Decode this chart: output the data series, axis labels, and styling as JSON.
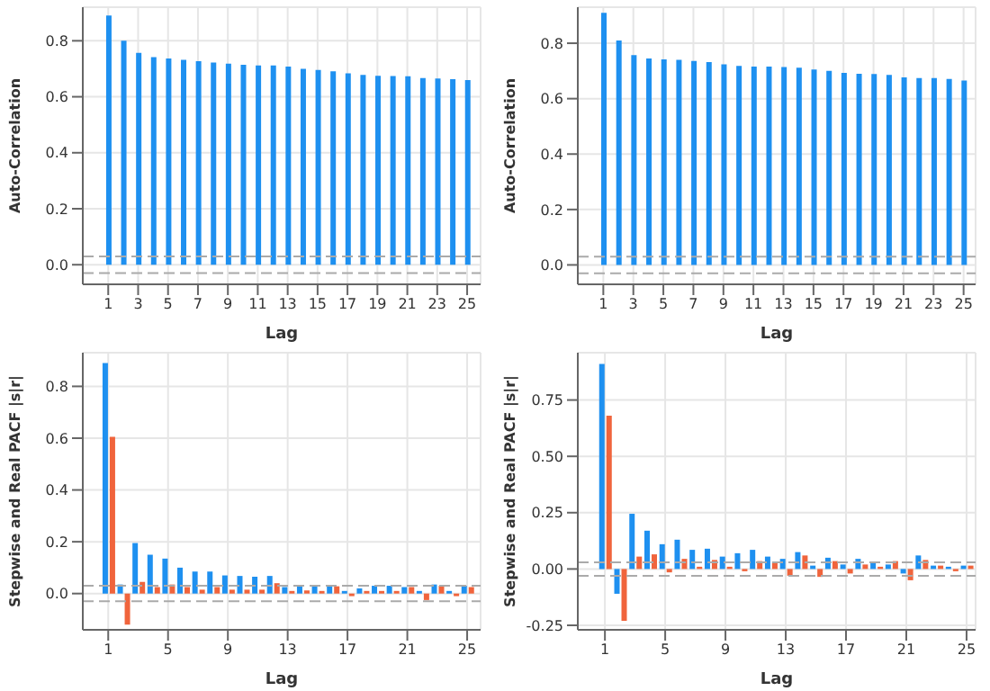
{
  "chart_data": [
    {
      "type": "bar",
      "xlabel": "Lag",
      "ylabel": "Auto-Correlation",
      "x": [
        1,
        2,
        3,
        4,
        5,
        6,
        7,
        8,
        9,
        10,
        11,
        12,
        13,
        14,
        15,
        16,
        17,
        18,
        19,
        20,
        21,
        22,
        23,
        24,
        25
      ],
      "series": [
        {
          "color": "#1e90f0",
          "values": [
            0.89,
            0.8,
            0.757,
            0.742,
            0.737,
            0.732,
            0.727,
            0.722,
            0.718,
            0.714,
            0.712,
            0.712,
            0.708,
            0.7,
            0.696,
            0.691,
            0.684,
            0.678,
            0.675,
            0.674,
            0.673,
            0.667,
            0.665,
            0.663,
            0.66
          ]
        }
      ],
      "xlim": [
        -0.7,
        25.9
      ],
      "xticks": [
        1,
        3,
        5,
        7,
        9,
        11,
        13,
        15,
        17,
        19,
        21,
        23,
        25
      ],
      "ylim": [
        -0.07,
        0.92
      ],
      "yticks": [
        {
          "value": 0,
          "label": "0.0"
        },
        {
          "value": 0.2,
          "label": "0.2"
        },
        {
          "value": 0.4,
          "label": "0.4"
        },
        {
          "value": 0.6,
          "label": "0.6"
        },
        {
          "value": 0.8,
          "label": "0.8"
        }
      ],
      "grid": true,
      "ref_lines": [
        {
          "axis": "y",
          "value": 0.03,
          "color": "#aaaaaa",
          "line_style": "dashed"
        },
        {
          "axis": "y",
          "value": -0.03,
          "color": "#aaaaaa",
          "line_style": "dashed"
        }
      ]
    },
    {
      "type": "bar",
      "xlabel": "Lag",
      "ylabel": "Auto-Correlation",
      "x": [
        1,
        2,
        3,
        4,
        5,
        6,
        7,
        8,
        9,
        10,
        11,
        12,
        13,
        14,
        15,
        16,
        17,
        18,
        19,
        20,
        21,
        22,
        23,
        24,
        25
      ],
      "series": [
        {
          "color": "#1e90f0",
          "values": [
            0.91,
            0.81,
            0.757,
            0.745,
            0.742,
            0.74,
            0.736,
            0.732,
            0.724,
            0.718,
            0.716,
            0.716,
            0.714,
            0.712,
            0.705,
            0.7,
            0.693,
            0.69,
            0.689,
            0.686,
            0.677,
            0.674,
            0.674,
            0.671,
            0.665
          ]
        }
      ],
      "xlim": [
        -0.7,
        25.8
      ],
      "xticks": [
        1,
        3,
        5,
        7,
        9,
        11,
        13,
        15,
        17,
        19,
        21,
        23,
        25
      ],
      "ylim": [
        -0.07,
        0.93
      ],
      "yticks": [
        {
          "value": 0,
          "label": "0.0"
        },
        {
          "value": 0.2,
          "label": "0.2"
        },
        {
          "value": 0.4,
          "label": "0.4"
        },
        {
          "value": 0.6,
          "label": "0.6"
        },
        {
          "value": 0.8,
          "label": "0.8"
        }
      ],
      "grid": true,
      "ref_lines": [
        {
          "axis": "y",
          "value": 0.03,
          "color": "#aaaaaa",
          "line_style": "dashed"
        },
        {
          "axis": "y",
          "value": -0.03,
          "color": "#aaaaaa",
          "line_style": "dashed"
        }
      ]
    },
    {
      "type": "bar",
      "xlabel": "Lag",
      "ylabel": "Stepwise and Real PACF  |s|r|",
      "x": [
        1,
        2,
        3,
        4,
        5,
        6,
        7,
        8,
        9,
        10,
        11,
        12,
        13,
        14,
        15,
        16,
        17,
        18,
        19,
        20,
        21,
        22,
        23,
        24,
        25
      ],
      "series": [
        {
          "color": "#1e90f0",
          "values": [
            0.89,
            0.035,
            0.195,
            0.15,
            0.135,
            0.1,
            0.085,
            0.085,
            0.07,
            0.068,
            0.065,
            0.068,
            0.025,
            0.032,
            0.032,
            0.033,
            0.01,
            0.02,
            0.03,
            0.03,
            0.025,
            0.01,
            0.035,
            0.01,
            0.03
          ]
        },
        {
          "color": "#f0643c",
          "values": [
            0.605,
            -0.12,
            0.045,
            0.025,
            0.035,
            0.025,
            0.015,
            0.025,
            0.015,
            0.015,
            0.015,
            0.04,
            0.01,
            0.012,
            0.01,
            0.028,
            -0.01,
            0.01,
            0.01,
            0.01,
            0.025,
            -0.025,
            0.03,
            -0.01,
            0.025
          ]
        }
      ],
      "xlim": [
        -0.7,
        25.9
      ],
      "xticks": [
        1,
        5,
        9,
        13,
        17,
        21,
        25
      ],
      "ylim": [
        -0.14,
        0.93
      ],
      "yticks": [
        {
          "value": 0,
          "label": "0.0"
        },
        {
          "value": 0.2,
          "label": "0.2"
        },
        {
          "value": 0.4,
          "label": "0.4"
        },
        {
          "value": 0.6,
          "label": "0.6"
        },
        {
          "value": 0.8,
          "label": "0.8"
        }
      ],
      "grid": true,
      "ref_lines": [
        {
          "axis": "y",
          "value": 0.03,
          "color": "#aaaaaa",
          "line_style": "dashed"
        },
        {
          "axis": "y",
          "value": -0.03,
          "color": "#aaaaaa",
          "line_style": "dashed"
        }
      ]
    },
    {
      "type": "bar",
      "xlabel": "Lag",
      "ylabel": "Stepwise and Real PACF  |s|r|",
      "x": [
        1,
        2,
        3,
        4,
        5,
        6,
        7,
        8,
        9,
        10,
        11,
        12,
        13,
        14,
        15,
        16,
        17,
        18,
        19,
        20,
        21,
        22,
        23,
        24,
        25
      ],
      "series": [
        {
          "color": "#1e90f0",
          "values": [
            0.91,
            -0.11,
            0.245,
            0.17,
            0.11,
            0.13,
            0.085,
            0.09,
            0.055,
            0.07,
            0.085,
            0.055,
            0.045,
            0.075,
            0.015,
            0.05,
            0.02,
            0.045,
            0.03,
            0.02,
            -0.02,
            0.06,
            0.015,
            0.01,
            0.015
          ]
        },
        {
          "color": "#f0643c",
          "values": [
            0.68,
            -0.23,
            0.055,
            0.065,
            -0.015,
            0.045,
            0.01,
            0.04,
            0.01,
            -0.01,
            0.035,
            0.03,
            -0.03,
            0.06,
            -0.035,
            0.035,
            -0.02,
            0.02,
            0.01,
            0.035,
            -0.05,
            0.04,
            0.015,
            -0.01,
            0.015
          ]
        }
      ],
      "xlim": [
        -0.8,
        25.6
      ],
      "xticks": [
        1,
        5,
        9,
        13,
        17,
        21,
        25
      ],
      "ylim": [
        -0.27,
        0.96
      ],
      "yticks": [
        {
          "value": -0.25,
          "label": "-0.25"
        },
        {
          "value": 0,
          "label": "0.00"
        },
        {
          "value": 0.25,
          "label": "0.25"
        },
        {
          "value": 0.5,
          "label": "0.50"
        },
        {
          "value": 0.75,
          "label": "0.75"
        }
      ],
      "grid": true,
      "ref_lines": [
        {
          "axis": "y",
          "value": 0.03,
          "color": "#aaaaaa",
          "line_style": "dashed"
        },
        {
          "axis": "y",
          "value": -0.03,
          "color": "#aaaaaa",
          "line_style": "dashed"
        }
      ]
    }
  ]
}
